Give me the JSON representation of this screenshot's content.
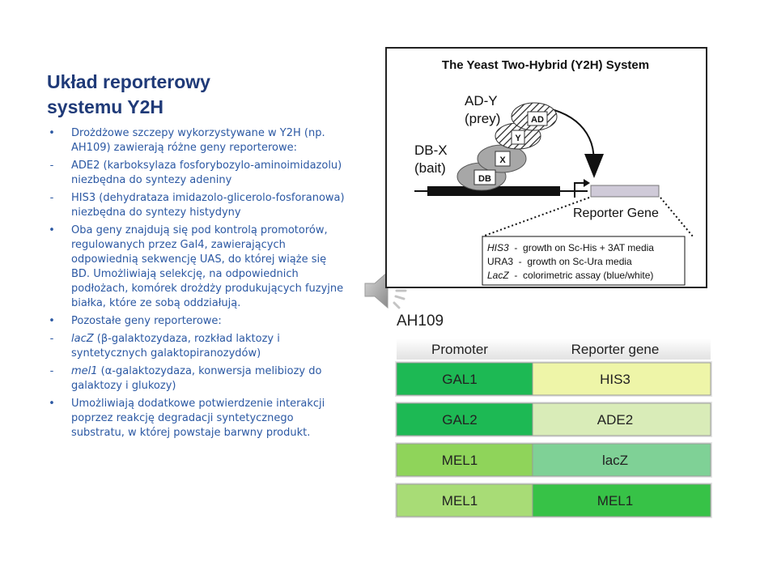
{
  "slide": {
    "title_line1": "Układ reporterowy",
    "title_line2": "systemu Y2H",
    "bullets": [
      {
        "marker": "•",
        "text": "Drożdżowe szczepy wykorzystywane w Y2H (np. AH109) zawierają różne geny reporterowe:"
      },
      {
        "marker": "-",
        "text": "ADE2 (karboksylaza fosforybozylo-aminoimidazolu) niezbędna do syntezy adeniny"
      },
      {
        "marker": "-",
        "text": "HIS3 (dehydrataza imidazolo-glicerolo-fosforanowa) niezbędna do syntezy histydyny"
      },
      {
        "marker": "•",
        "text": "Oba geny znajdują się pod kontrolą promotorów, regulowanych przez Gal4, zawierających odpowiednią sekwencję UAS, do której wiąże się BD. Umożliwiają selekcję, na odpowiednich podłożach, komórek drożdży produkujących fuzyjne białka, które ze sobą oddziałują."
      },
      {
        "marker": "•",
        "text": "Pozostałe geny reporterowe:"
      },
      {
        "marker": "-",
        "italic": "lacZ",
        "text": " (β-galaktozydaza, rozkład laktozy i syntetycznych galaktopiranozydów)"
      },
      {
        "marker": "-",
        "italic": "mel1",
        "text": " (α-galaktozydaza, konwersja melibiozy do galaktozy i glukozy)"
      },
      {
        "marker": "•",
        "text": "Umożliwiają dodatkowe potwierdzenie interakcji poprzez reakcję degradacji syntetycznego substratu, w której powstaje barwny produkt."
      }
    ]
  },
  "diagram": {
    "title": "The Yeast Two-Hybrid (Y2H) System",
    "prey_label_1": "AD-Y",
    "prey_label_2": "(prey)",
    "bait_label_1": "DB-X",
    "bait_label_2": "(bait)",
    "domain_ad": "AD",
    "domain_y": "Y",
    "domain_x": "X",
    "domain_db": "DB",
    "reporter_label": "Reporter Gene",
    "legend": [
      {
        "gene": "HIS3",
        "italic": true,
        "text": "  -  growth on Sc-His + 3AT media"
      },
      {
        "gene": "URA3",
        "italic": false,
        "text": "  -  growth on Sc-Ura media"
      },
      {
        "gene": "LacZ",
        "italic": true,
        "text": "  -  colorimetric assay (blue/white)"
      }
    ]
  },
  "strain": {
    "name": "AH109",
    "header_promoter": "Promoter",
    "header_reporter": "Reporter gene",
    "rows": [
      {
        "promoter": "GAL1",
        "reporter": "HIS3",
        "promoter_color": "#1db954",
        "reporter_color": "#eef5a8"
      },
      {
        "promoter": "GAL2",
        "reporter": "ADE2",
        "promoter_color": "#1db954",
        "reporter_color": "#d9ecb8"
      },
      {
        "promoter": "MEL1",
        "reporter": "lacZ",
        "promoter_color": "#8fd45a",
        "reporter_color": "#7fd196"
      },
      {
        "promoter": "MEL1",
        "reporter": "MEL1",
        "promoter_color": "#a8dc76",
        "reporter_color": "#37c247"
      }
    ]
  },
  "icons": {
    "speaker": "speaker-icon"
  }
}
